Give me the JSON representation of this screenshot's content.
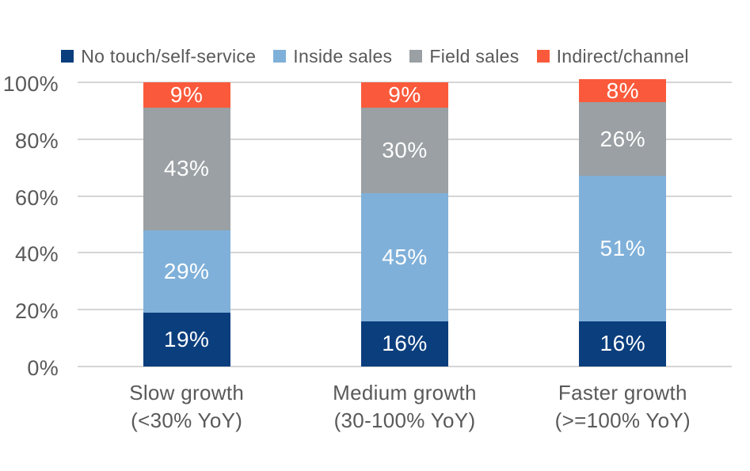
{
  "chart_data": {
    "type": "bar",
    "stacked": true,
    "title": "",
    "legend_position": "top",
    "grid": true,
    "ylim": [
      0,
      100
    ],
    "y_ticks": [
      "0%",
      "20%",
      "40%",
      "60%",
      "80%",
      "100%"
    ],
    "categories": [
      {
        "line1": "Slow growth",
        "line2": "(<30% YoY)"
      },
      {
        "line1": "Medium growth",
        "line2": "(30-100% YoY)"
      },
      {
        "line1": "Faster growth",
        "line2": "(>=100% YoY)"
      }
    ],
    "series": [
      {
        "name": "No touch/self-service",
        "color": "#0B3E7D",
        "values": [
          19,
          16,
          16
        ],
        "labels": [
          "19%",
          "16%",
          "16%"
        ]
      },
      {
        "name": "Inside sales",
        "color": "#7FB0D9",
        "values": [
          29,
          45,
          51
        ],
        "labels": [
          "29%",
          "45%",
          "51%"
        ]
      },
      {
        "name": "Field sales",
        "color": "#9AA0A3",
        "values": [
          43,
          30,
          26
        ],
        "labels": [
          "43%",
          "30%",
          "26%"
        ]
      },
      {
        "name": "Indirect/channel",
        "color": "#FA5A3B",
        "values": [
          9,
          9,
          8
        ],
        "labels": [
          "9%",
          "9%",
          "8%"
        ]
      }
    ]
  },
  "colors": {
    "axis_text": "#595959",
    "gridline": "#D5D5D5",
    "bar_label": "#FFFFFF",
    "background": "#FFFFFF"
  }
}
